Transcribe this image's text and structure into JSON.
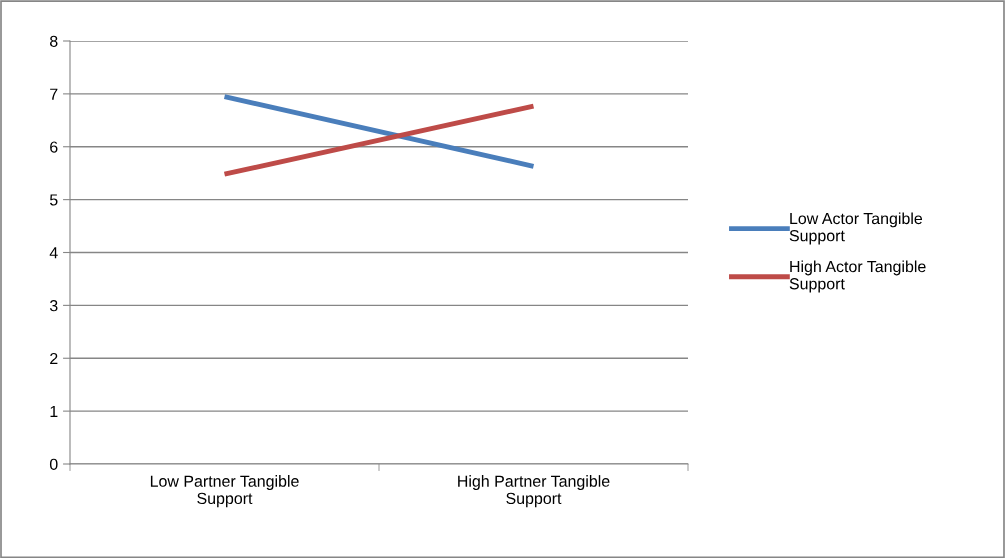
{
  "chart_data": {
    "type": "line",
    "categories": [
      "Low Partner Tangible Support",
      "High Partner Tangible Support"
    ],
    "series": [
      {
        "name": "Low Actor Tangible Support",
        "color": "#4a7ebb",
        "values": [
          6.95,
          5.63
        ]
      },
      {
        "name": "High Actor Tangible Support",
        "color": "#be4b48",
        "values": [
          5.48,
          6.77
        ]
      }
    ],
    "ylim": [
      0,
      8
    ],
    "yticks": [
      0,
      1,
      2,
      3,
      4,
      5,
      6,
      7,
      8
    ],
    "grid": "y",
    "legend": "right",
    "marker": "none",
    "line_style": "solid"
  }
}
